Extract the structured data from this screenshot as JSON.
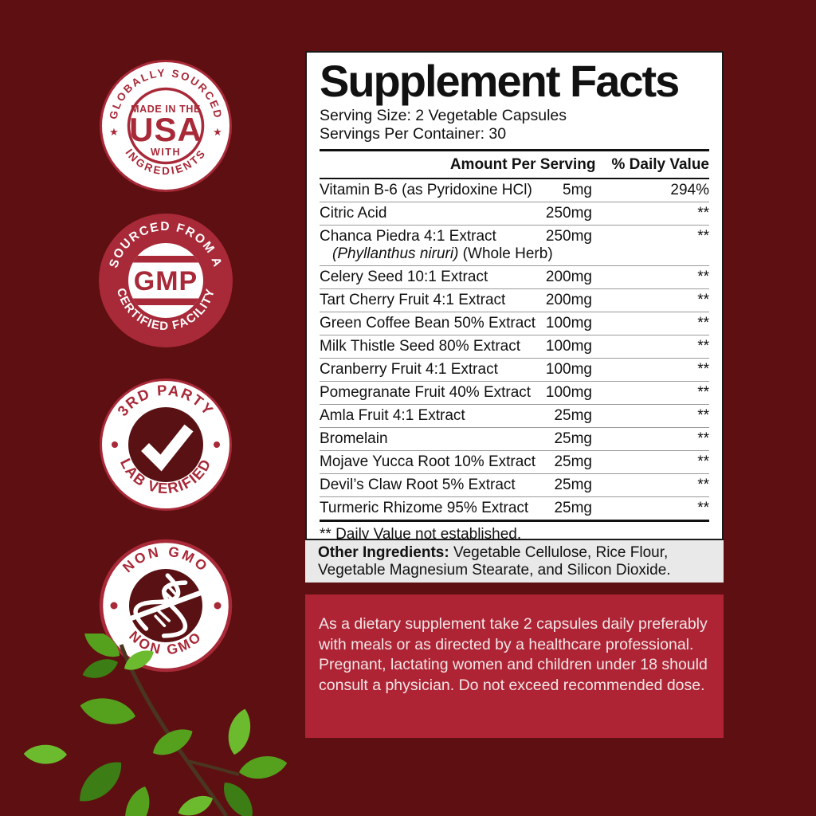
{
  "colors": {
    "background": "#5e0f11",
    "badge_red": "#a82938",
    "dark_circle": "#591113",
    "panel_border": "#1a1a1a",
    "gray_box": "#e9e9e9",
    "directions_bg": "#ae2435",
    "directions_text": "#f2e6e7"
  },
  "badges": [
    {
      "top_arc": "GLOBALLY SOURCED",
      "bottom_arc": "INGREDIENTS",
      "side_glyph": "★",
      "line1": "MADE IN THE",
      "line2": "USA",
      "line3": "WITH"
    },
    {
      "top_arc": "SOURCED FROM A",
      "bottom_arc": "CERTIFIED FACILITY",
      "center": "GMP"
    },
    {
      "top_arc": "3RD PARTY",
      "bottom_arc": "LAB VERIFIED",
      "center_icon": "checkmark"
    },
    {
      "top_arc": "NON GMO",
      "bottom_arc": "NON GMO",
      "center_icon": "dna-crossed"
    }
  ],
  "panel": {
    "title": "Supplement Facts",
    "serving_size": "Serving Size: 2 Vegetable Capsules",
    "servings_per_container": "Servings Per Container: 30",
    "col_amount": "Amount Per Serving",
    "col_dv": "% Daily Value",
    "rows": [
      {
        "name": "Vitamin B-6 (as Pyridoxine HCl)",
        "amount": "5mg",
        "dv": "294%"
      },
      {
        "name": "Citric Acid",
        "amount": "250mg",
        "dv": "**"
      },
      {
        "name": "Chanca Piedra 4:1 Extract",
        "sub_italic": "(Phyllanthus niruri)",
        "sub_rest": " (Whole Herb)",
        "amount": "250mg",
        "dv": "**"
      },
      {
        "name": "Celery Seed 10:1 Extract",
        "amount": "200mg",
        "dv": "**"
      },
      {
        "name": "Tart Cherry Fruit 4:1 Extract",
        "amount": "200mg",
        "dv": "**"
      },
      {
        "name": "Green Coffee Bean 50% Extract",
        "amount": "100mg",
        "dv": "**"
      },
      {
        "name": "Milk Thistle Seed 80% Extract",
        "amount": "100mg",
        "dv": "**"
      },
      {
        "name": "Cranberry Fruit 4:1 Extract",
        "amount": "100mg",
        "dv": "**"
      },
      {
        "name": "Pomegranate Fruit 40% Extract",
        "amount": "100mg",
        "dv": "**"
      },
      {
        "name": "Amla Fruit 4:1 Extract",
        "amount": "25mg",
        "dv": "**"
      },
      {
        "name": "Bromelain",
        "amount": "25mg",
        "dv": "**"
      },
      {
        "name": "Mojave Yucca Root 10% Extract",
        "amount": "25mg",
        "dv": "**"
      },
      {
        "name": "Devil’s Claw Root 5% Extract",
        "amount": "25mg",
        "dv": "**"
      },
      {
        "name": "Turmeric Rhizome 95% Extract",
        "amount": "25mg",
        "dv": "**"
      }
    ],
    "footnote": "** Daily Value not established."
  },
  "other_ingredients": {
    "label": "Other Ingredients:",
    "text": " Vegetable Cellulose, Rice Flour, Vegetable Magnesium Stearate, and Silicon Dioxide."
  },
  "directions": {
    "text": "As a dietary supplement take 2 capsules daily preferably with meals or as directed by a healthcare professional. Pregnant, lactating women and children under 18 should consult a physician. Do not exceed recommended dose."
  }
}
